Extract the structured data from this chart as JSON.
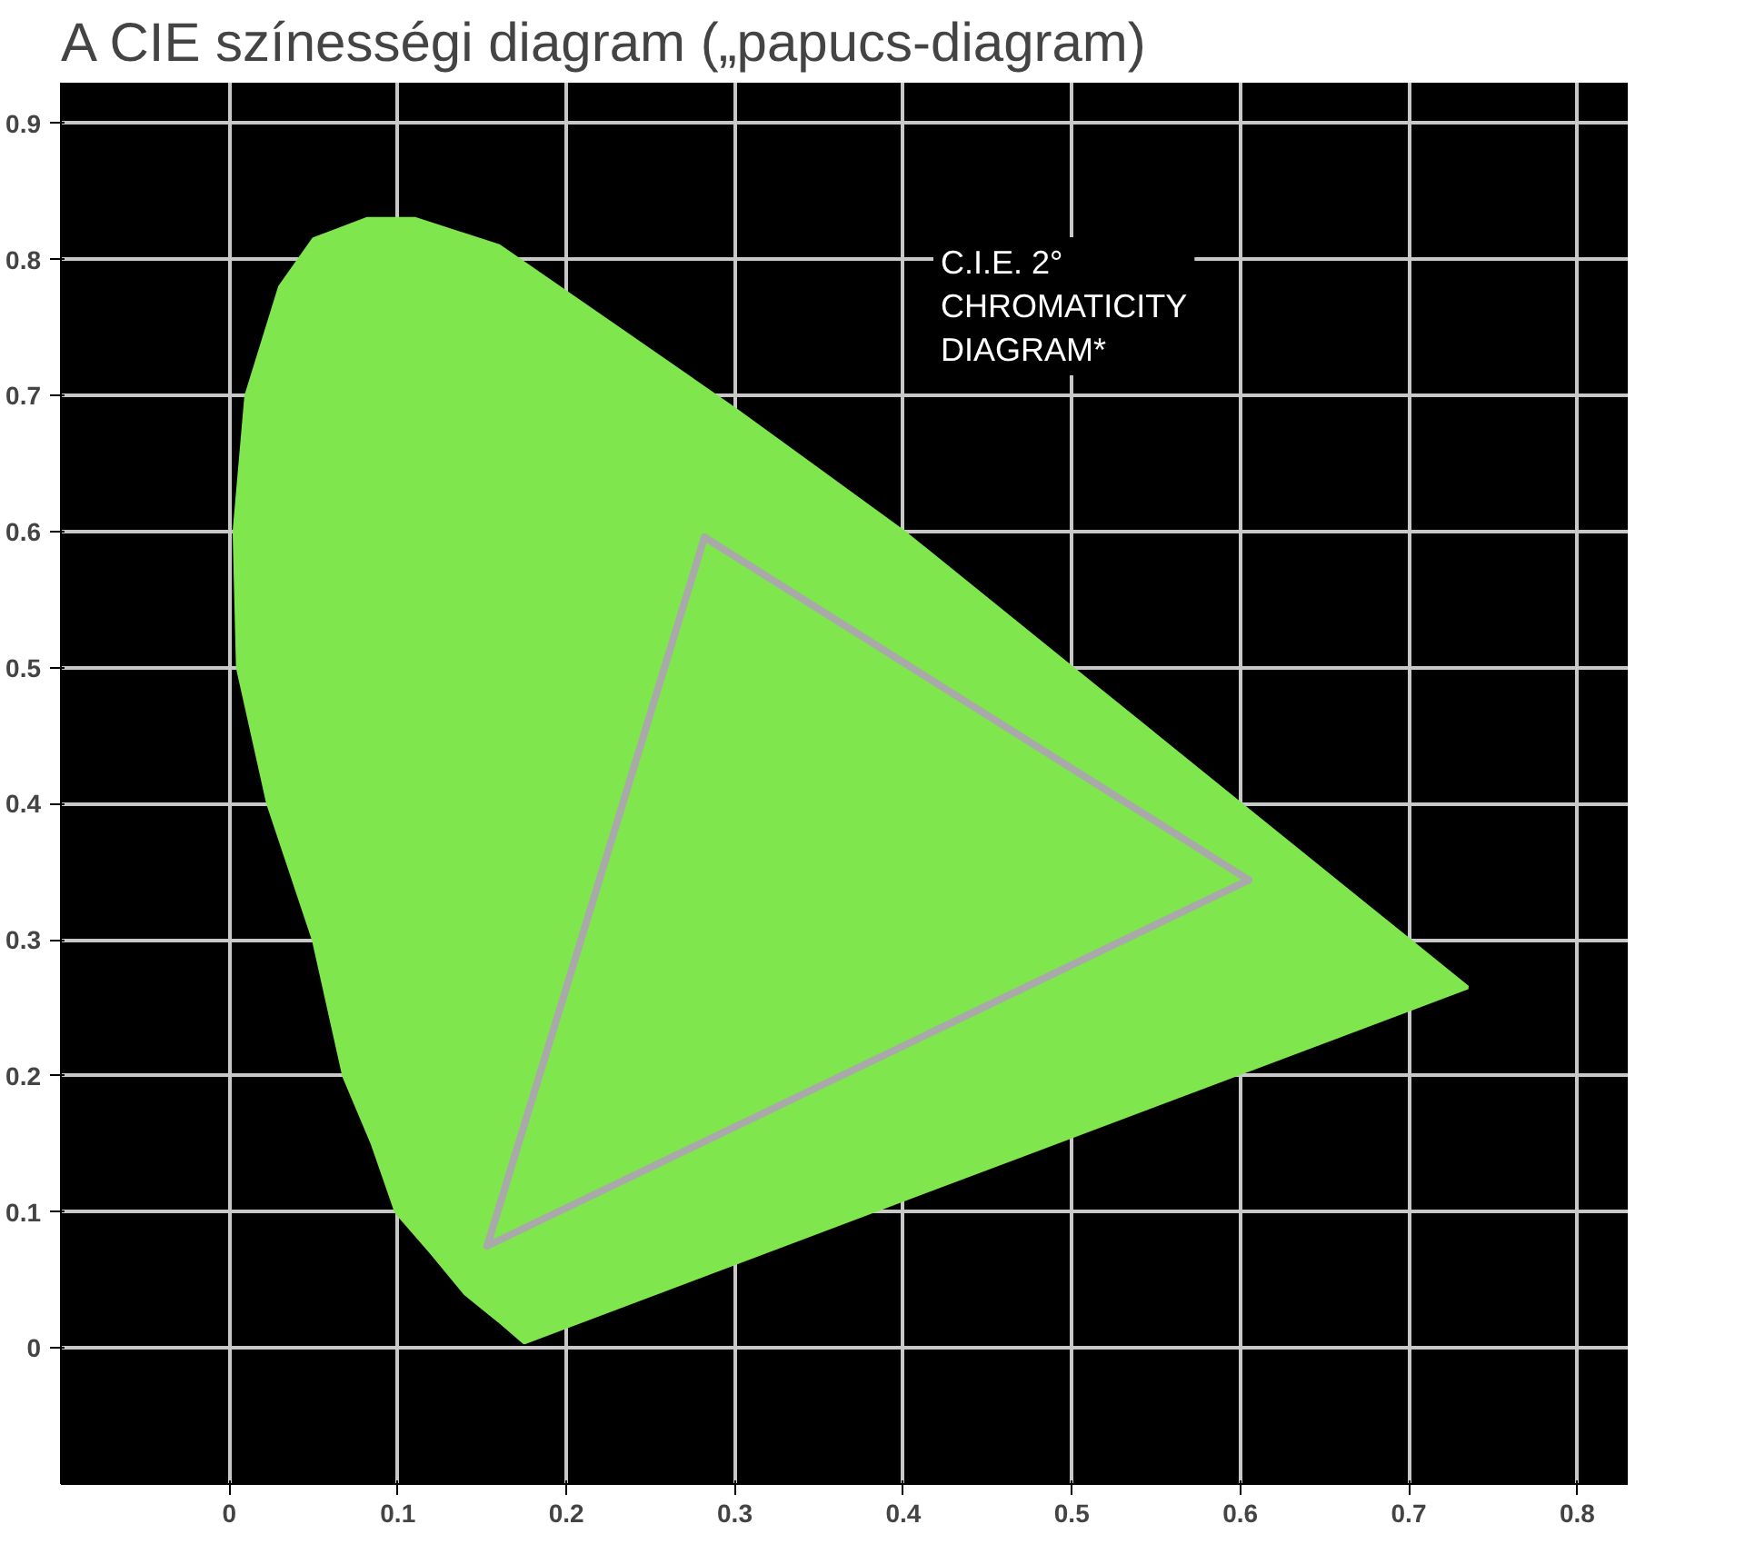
{
  "chart_data": {
    "type": "line",
    "title": "A CIE színességi diagram („papucs-diagram)",
    "annotations": [
      "C.I.E. 2°\nCHROMATICITY\nDIAGRAM*"
    ],
    "xlim": [
      -0.1,
      0.83
    ],
    "ylim": [
      -0.1,
      0.93
    ],
    "xticks": [
      0,
      0.1,
      0.2,
      0.3,
      0.4,
      0.5,
      0.6,
      0.7,
      0.8
    ],
    "yticks": [
      0,
      0.1,
      0.2,
      0.3,
      0.4,
      0.5,
      0.6,
      0.7,
      0.8,
      0.9
    ],
    "grid": true,
    "series": [
      {
        "type": "area",
        "color": "#7fe64d",
        "x": [
          0.175,
          0.16,
          0.14,
          0.12,
          0.099,
          0.085,
          0.068,
          0.05,
          0.023,
          0.005,
          0.003,
          0.01,
          0.03,
          0.05,
          0.082,
          0.11,
          0.16,
          0.23,
          0.3,
          0.4,
          0.5,
          0.6,
          0.7,
          0.735,
          0.175
        ],
        "values": [
          0.004,
          0.02,
          0.04,
          0.07,
          0.1,
          0.15,
          0.2,
          0.3,
          0.4,
          0.5,
          0.6,
          0.7,
          0.78,
          0.815,
          0.83,
          0.83,
          0.81,
          0.75,
          0.69,
          0.6,
          0.5,
          0.4,
          0.3,
          0.265,
          0.004
        ]
      },
      {
        "color": "#a9a9a9",
        "x": [
          0.282,
          0.605
        ],
        "values": [
          0.596,
          0.344
        ]
      },
      {
        "color": "#a9a9a9",
        "x": [
          0.153,
          0.605
        ],
        "values": [
          0.075,
          0.344
        ]
      },
      {
        "color": "#a9a9a9",
        "x": [
          0.153,
          0.282
        ],
        "values": [
          0.075,
          0.596
        ]
      }
    ]
  }
}
